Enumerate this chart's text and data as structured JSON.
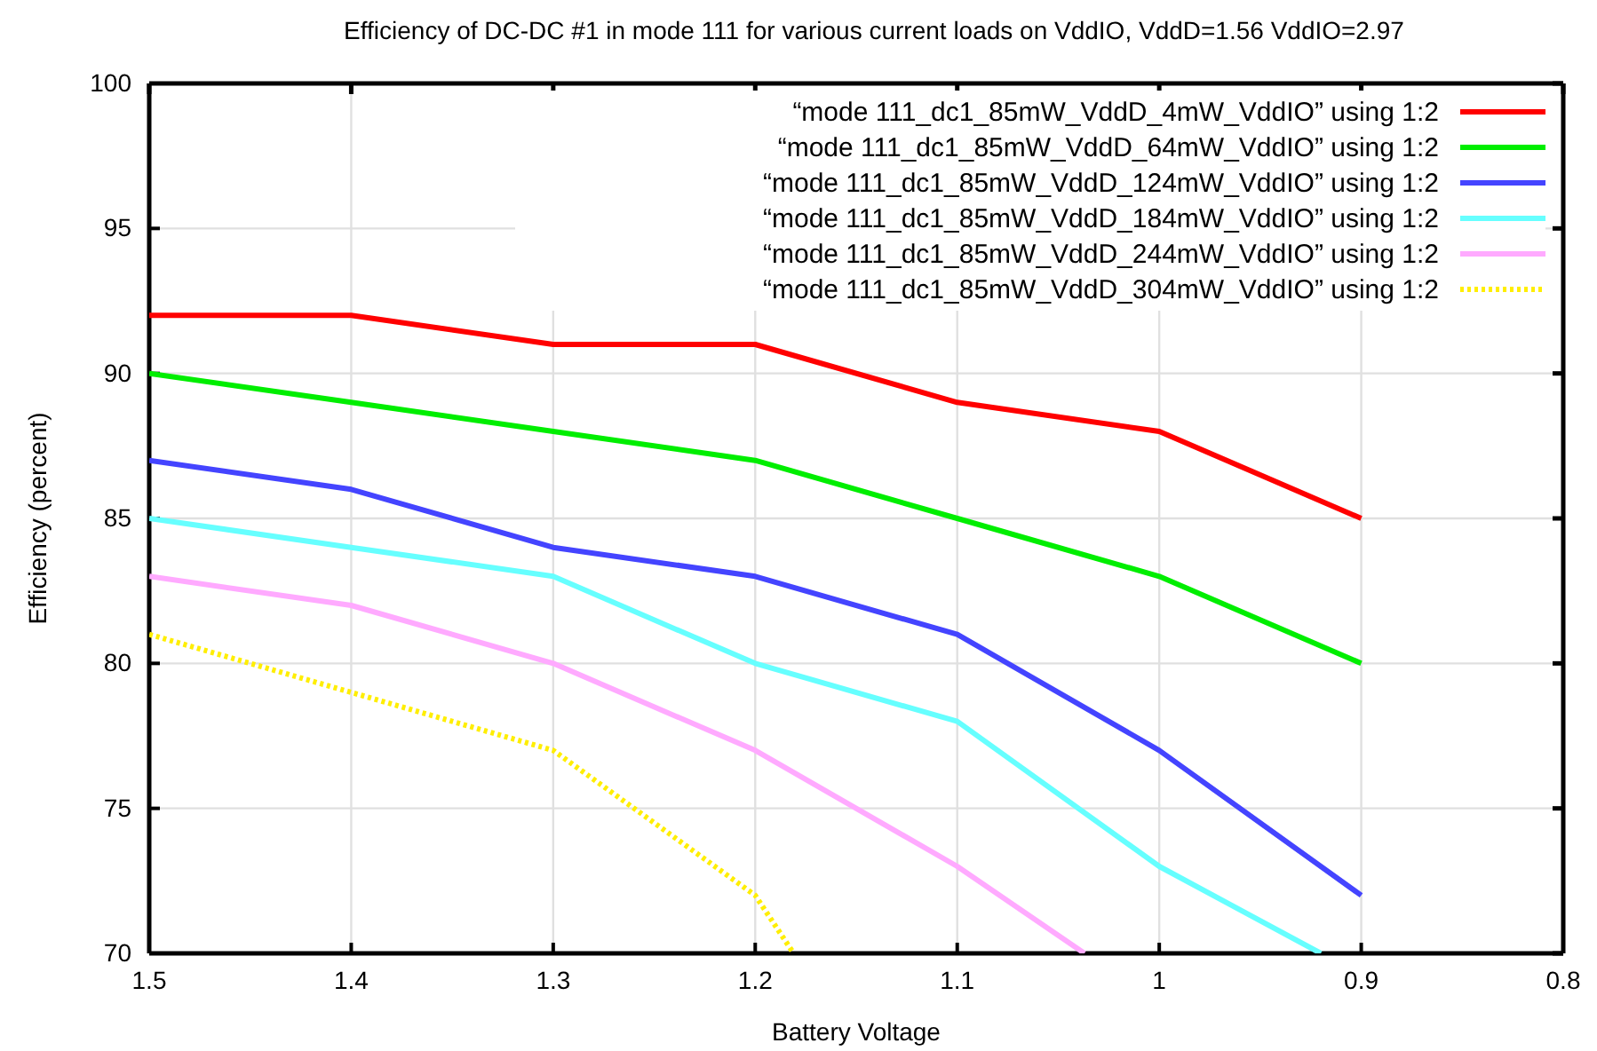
{
  "chart_data": {
    "type": "line",
    "title": "Efficiency of DC-DC #1 in mode 111 for various current loads on VddIO, VddD=1.56 VddIO=2.97",
    "xlabel": "Battery Voltage",
    "ylabel": "Efficiency (percent)",
    "xlim": [
      1.5,
      0.8
    ],
    "xticks": [
      1.5,
      1.4,
      1.3,
      1.2,
      1.1,
      1,
      0.9,
      0.8
    ],
    "ylim": [
      70,
      100
    ],
    "yticks": [
      70,
      75,
      80,
      85,
      90,
      95,
      100
    ],
    "grid": true,
    "legend": "top right",
    "marker": "none",
    "series": [
      {
        "name": "“mode 111_dc1_85mW_VddD_4mW_VddIO” using 1:2",
        "color": "#ff0000",
        "line_style": "solid",
        "x": [
          1.5,
          1.4,
          1.3,
          1.2,
          1.1,
          1,
          0.9
        ],
        "values": [
          92,
          92,
          91,
          91,
          89,
          88,
          85
        ]
      },
      {
        "name": "“mode 111_dc1_85mW_VddD_64mW_VddIO” using 1:2",
        "color": "#00ee00",
        "line_style": "solid",
        "x": [
          1.5,
          1.4,
          1.3,
          1.2,
          1.1,
          1,
          0.9
        ],
        "values": [
          90,
          89,
          88,
          87,
          85,
          83,
          80
        ]
      },
      {
        "name": "“mode 111_dc1_85mW_VddD_124mW_VddIO” using 1:2",
        "color": "#4444ff",
        "line_style": "solid",
        "x": [
          1.5,
          1.4,
          1.3,
          1.2,
          1.1,
          1,
          0.9
        ],
        "values": [
          87,
          86,
          84,
          83,
          81,
          77,
          72
        ]
      },
      {
        "name": "“mode 111_dc1_85mW_VddD_184mW_VddIO” using 1:2",
        "color": "#66ffff",
        "line_style": "solid",
        "x": [
          1.5,
          1.4,
          1.3,
          1.2,
          1.1,
          1,
          0.92
        ],
        "values": [
          85,
          84,
          83,
          80,
          78,
          73,
          70
        ]
      },
      {
        "name": "“mode 111_dc1_85mW_VddD_244mW_VddIO” using 1:2",
        "color": "#ffaaff",
        "line_style": "solid",
        "x": [
          1.5,
          1.4,
          1.3,
          1.2,
          1.1,
          1.037
        ],
        "values": [
          83,
          82,
          80,
          77,
          73,
          70
        ]
      },
      {
        "name": "“mode 111_dc1_85mW_VddD_304mW_VddIO” using 1:2",
        "color": "#ffee00",
        "line_style": "dotted",
        "x": [
          1.5,
          1.4,
          1.3,
          1.2,
          1.181
        ],
        "values": [
          81,
          79,
          77,
          72,
          70
        ]
      }
    ]
  }
}
